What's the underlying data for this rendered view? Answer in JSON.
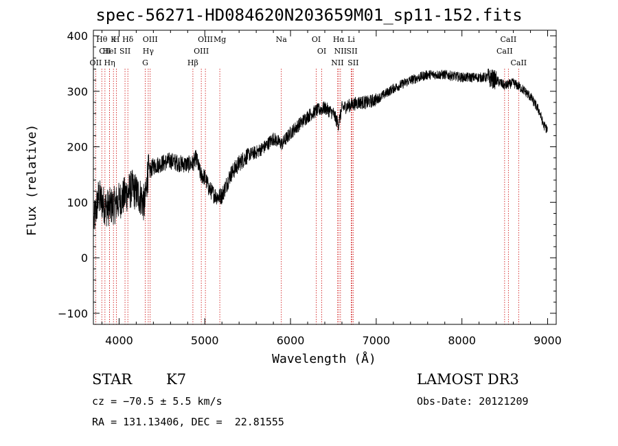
{
  "title": "spec-56271-HD084620N203659M01_sp11-152.fits",
  "info": {
    "class": "STAR",
    "subclass": "K7",
    "survey": "LAMOST DR3",
    "cz": "cz = −70.5 ± 5.5 km/s",
    "obs_date": "Obs-Date: 20121209",
    "coords": "RA = 131.13406, DEC =  22.81555"
  },
  "chart_data": {
    "type": "line",
    "title": "spec-56271-HD084620N203659M01_sp11-152.fits",
    "xlabel": "Wavelength (Å)",
    "ylabel": "Flux (relative)",
    "xlim": [
      3700,
      9100
    ],
    "ylim": [
      -120,
      410
    ],
    "xticks": [
      4000,
      5000,
      6000,
      7000,
      8000,
      9000
    ],
    "yticks": [
      -100,
      0,
      100,
      200,
      300,
      400
    ],
    "ytick_labels": [
      "−100",
      "0",
      "100",
      "200",
      "300",
      "400"
    ],
    "line_color": "#000000",
    "marker_color": "#cc0000",
    "spectrum_trend": {
      "x": [
        3700,
        3760,
        3850,
        3950,
        4050,
        4150,
        4250,
        4300,
        4330,
        4400,
        4500,
        4600,
        4700,
        4800,
        4860,
        4900,
        4950,
        5000,
        5050,
        5100,
        5150,
        5200,
        5300,
        5400,
        5500,
        5600,
        5700,
        5800,
        5900,
        6000,
        6100,
        6200,
        6300,
        6400,
        6500,
        6560,
        6600,
        6700,
        6800,
        6900,
        7000,
        7200,
        7400,
        7600,
        7800,
        8000,
        8200,
        8300,
        8400,
        8500,
        8600,
        8700,
        8800,
        8900,
        8950,
        9000
      ],
      "y": [
        60,
        110,
        90,
        95,
        110,
        125,
        110,
        95,
        150,
        165,
        170,
        175,
        170,
        168,
        170,
        180,
        150,
        145,
        125,
        115,
        110,
        112,
        150,
        170,
        185,
        190,
        200,
        215,
        205,
        225,
        240,
        255,
        265,
        270,
        260,
        240,
        270,
        275,
        280,
        280,
        285,
        305,
        320,
        330,
        330,
        325,
        325,
        325,
        320,
        310,
        315,
        305,
        290,
        265,
        240,
        230
      ]
    },
    "line_groups": [
      {
        "rows": [
          [
            "Hθ",
            3798
          ],
          [
            "CII",
            3835
          ],
          [
            "OII",
            3727
          ]
        ]
      },
      {
        "rows": [
          [
            "K",
            3934
          ],
          [
            "HeI",
            3889
          ],
          [
            "Hη",
            3889
          ],
          [
            "H",
            3969
          ]
        ]
      },
      {
        "rows": [
          [
            "Hδ",
            4102
          ],
          [
            "SII",
            4069
          ]
        ]
      },
      {
        "rows": [
          [
            "OIII",
            4363
          ],
          [
            "Hγ",
            4340
          ],
          [
            "G",
            4305
          ]
        ]
      },
      {
        "rows": [
          [
            "OIII",
            5007
          ],
          [
            "OIII",
            4959
          ],
          [
            "Hβ",
            4861
          ],
          [
            "Mg",
            5175
          ]
        ]
      },
      {
        "rows": [
          [
            "Na",
            5893
          ]
        ]
      },
      {
        "rows": [
          [
            "OI",
            6300
          ],
          [
            "OI",
            6364
          ]
        ]
      },
      {
        "rows": [
          [
            "Hα",
            6563
          ],
          [
            "SII",
            6717
          ],
          [
            "NII",
            6548
          ],
          [
            "Li",
            6708
          ],
          [
            "NII",
            6583
          ],
          [
            "SII",
            6731
          ]
        ]
      },
      {
        "rows": [
          [
            "CaII",
            8542
          ],
          [
            "CaII",
            8498
          ],
          [
            "CaII",
            8662
          ]
        ]
      }
    ]
  }
}
